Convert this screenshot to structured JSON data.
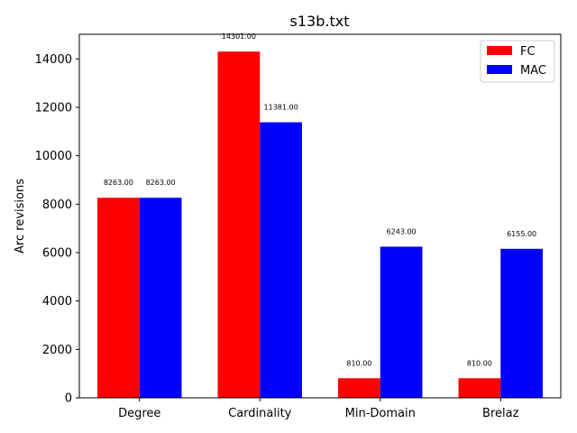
{
  "chart_data": {
    "type": "bar",
    "title": "s13b.txt",
    "xlabel": "",
    "ylabel": "Arc revisions",
    "categories": [
      "Degree",
      "Cardinality",
      "Min-Domain",
      "Brelaz"
    ],
    "series": [
      {
        "name": "FC",
        "color": "#ff0000",
        "values": [
          8263,
          14301,
          810,
          810
        ],
        "labels": [
          "8263.00",
          "14301.00",
          "810.00",
          "810.00"
        ]
      },
      {
        "name": "MAC",
        "color": "#0000ff",
        "values": [
          8263,
          11381,
          6243,
          6155
        ],
        "labels": [
          "8263.00",
          "11381.00",
          "6243.00",
          "6155.00"
        ]
      }
    ],
    "ylim": [
      0,
      15016
    ],
    "yticks": [
      0,
      2000,
      4000,
      6000,
      8000,
      10000,
      12000,
      14000
    ],
    "ytick_labels": [
      "0",
      "2000",
      "4000",
      "6000",
      "8000",
      "10000",
      "12000",
      "14000"
    ],
    "grid": false,
    "legend_position": "top-right"
  }
}
